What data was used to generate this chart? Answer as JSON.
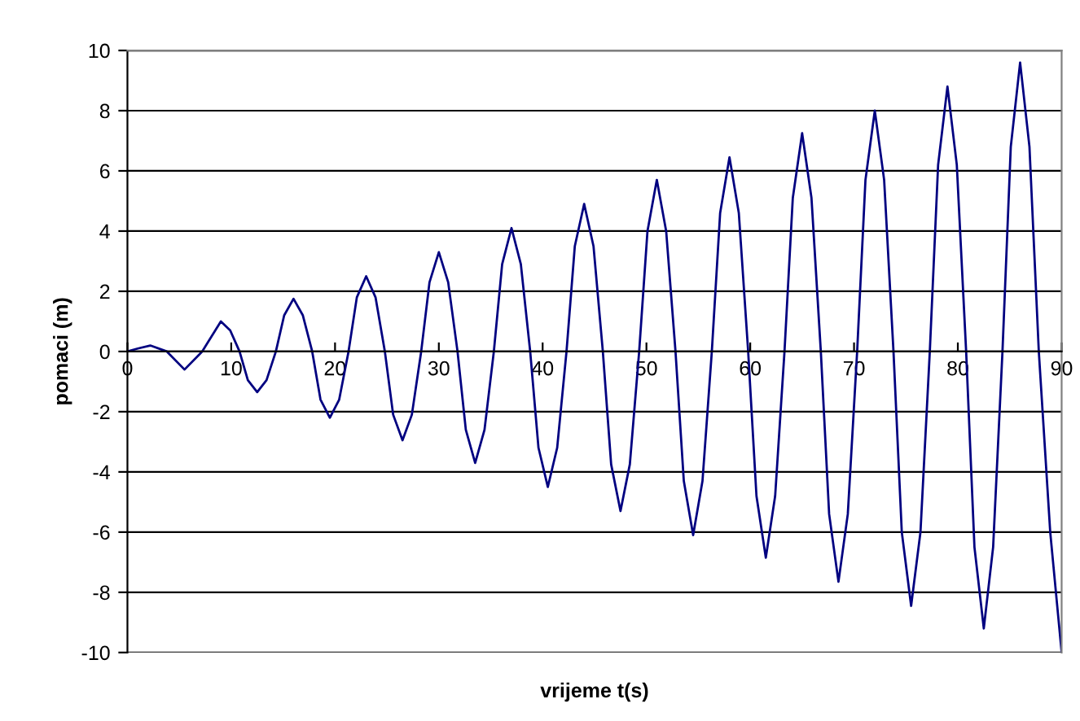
{
  "chart_data": {
    "type": "line",
    "xlabel": "vrijeme t(s)",
    "ylabel": "pomaci (m)",
    "xlim": [
      0,
      90
    ],
    "xticks": [
      0,
      10,
      20,
      30,
      40,
      50,
      60,
      70,
      80,
      90
    ],
    "ylim": [
      -10,
      10
    ],
    "yticks": [
      -10,
      -8,
      -6,
      -4,
      -2,
      0,
      2,
      4,
      6,
      8,
      10
    ],
    "grid": "y",
    "marker": "none",
    "line_style": "solid",
    "series": [
      {
        "color": "#000080",
        "x": [
          0,
          1,
          2.2,
          3.8,
          5.5,
          7.2,
          9,
          9.9,
          10.8,
          11.6,
          12.5,
          13.4,
          14.3,
          15.1,
          16,
          16.9,
          17.8,
          18.6,
          19.5,
          20.4,
          21.3,
          22.1,
          23,
          23.9,
          24.8,
          25.6,
          26.5,
          27.4,
          28.3,
          29.1,
          30,
          30.9,
          31.8,
          32.6,
          33.5,
          34.4,
          35.3,
          36.1,
          37,
          37.9,
          38.8,
          39.6,
          40.5,
          41.4,
          42.3,
          43.1,
          44,
          44.9,
          45.8,
          46.6,
          47.5,
          48.4,
          49.3,
          50.1,
          51,
          51.9,
          52.8,
          53.6,
          54.5,
          55.4,
          56.3,
          57.1,
          58,
          58.9,
          59.8,
          60.6,
          61.5,
          62.4,
          63.3,
          64.1,
          65,
          65.9,
          66.8,
          67.6,
          68.5,
          69.4,
          70.3,
          71.1,
          72,
          72.9,
          73.8,
          74.6,
          75.5,
          76.4,
          77.3,
          78.1,
          79,
          79.9,
          80.8,
          81.6,
          82.5,
          83.4,
          84.3,
          85.1,
          86,
          86.9,
          87.8,
          88.9,
          90
        ],
        "values": [
          0,
          0.1,
          0.2,
          0,
          -0.6,
          0,
          1.0,
          0.7,
          0,
          -0.95,
          -1.35,
          -0.95,
          0,
          1.2,
          1.75,
          1.2,
          0,
          -1.6,
          -2.2,
          -1.6,
          0,
          1.8,
          2.5,
          1.8,
          0,
          -2.1,
          -2.95,
          -2.1,
          0,
          2.3,
          3.3,
          2.3,
          0,
          -2.6,
          -3.7,
          -2.6,
          0,
          2.9,
          4.1,
          2.9,
          0,
          -3.2,
          -4.5,
          -3.2,
          0,
          3.5,
          4.9,
          3.5,
          0,
          -3.75,
          -5.3,
          -3.75,
          0,
          4.0,
          5.7,
          4.0,
          0,
          -4.3,
          -6.1,
          -4.3,
          0,
          4.6,
          6.45,
          4.6,
          0,
          -4.8,
          -6.85,
          -4.8,
          0,
          5.1,
          7.25,
          5.1,
          0,
          -5.4,
          -7.65,
          -5.4,
          0,
          5.7,
          8.0,
          5.7,
          0,
          -6.0,
          -8.45,
          -6.0,
          0,
          6.2,
          8.8,
          6.2,
          0,
          -6.5,
          -9.2,
          -6.5,
          0,
          6.8,
          9.6,
          6.8,
          0,
          -6.0,
          -10
        ]
      }
    ]
  }
}
